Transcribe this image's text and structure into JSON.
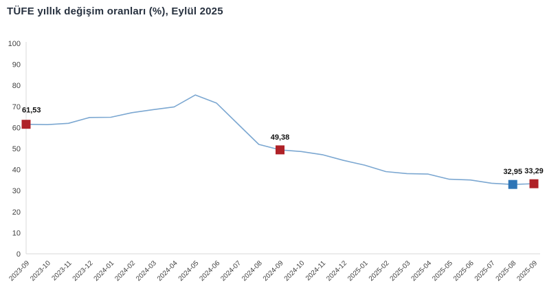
{
  "page": {
    "title": "TÜFE yıllık değişim oranları (%), Eylül 2025"
  },
  "chart_data": {
    "type": "line",
    "title": "TÜFE yıllık değişim oranları (%), Eylül 2025",
    "categories": [
      "2023-09",
      "2023-10",
      "2023-11",
      "2023-12",
      "2024-01",
      "2024-02",
      "2024-03",
      "2024-04",
      "2024-05",
      "2024-06",
      "2024-07",
      "2024-08",
      "2024-09",
      "2024-10",
      "2024-11",
      "2024-12",
      "2025-01",
      "2025-02",
      "2025-03",
      "2025-04",
      "2025-05",
      "2025-06",
      "2025-07",
      "2025-08",
      "2025-09"
    ],
    "values": [
      61.53,
      61.36,
      61.98,
      64.77,
      64.86,
      67.07,
      68.5,
      69.8,
      75.45,
      71.6,
      61.78,
      51.97,
      49.38,
      48.58,
      47.09,
      44.38,
      42.12,
      39.05,
      38.1,
      37.86,
      35.41,
      35.05,
      33.52,
      32.95,
      33.29
    ],
    "xlabel": "",
    "ylabel": "",
    "ylim": [
      0,
      100
    ],
    "y_ticks": [
      0,
      10,
      20,
      30,
      40,
      50,
      60,
      70,
      80,
      90,
      100
    ],
    "grid": false,
    "legend": false,
    "line_color": "#7BA7D1",
    "marker_colors": {
      "red": "#AF2127",
      "blue": "#2E75B6"
    },
    "annotations": [
      {
        "index": 0,
        "label": "61,53",
        "marker": "red"
      },
      {
        "index": 12,
        "label": "49,38",
        "marker": "red"
      },
      {
        "index": 23,
        "label": "32,95",
        "marker": "blue"
      },
      {
        "index": 24,
        "label": "33,29",
        "marker": "red"
      }
    ]
  }
}
